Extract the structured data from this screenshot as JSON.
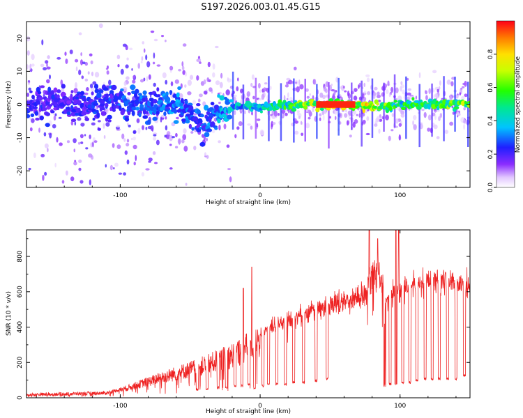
{
  "title": "S197.2026.003.01.45.G15",
  "chart_data": [
    {
      "type": "heatmap",
      "title": "S197.2026.003.01.45.G15",
      "xlabel": "Height of straight line (km)",
      "ylabel": "Frequency (Hz)",
      "xlim": [
        -167,
        150
      ],
      "ylim": [
        -25,
        25
      ],
      "xticks": [
        -100,
        0,
        100
      ],
      "yticks": [
        -20,
        -10,
        0,
        10,
        20
      ],
      "xtick_labels": [
        "-100",
        "0",
        "100"
      ],
      "ytick_labels": [
        "-20",
        "-10",
        "0",
        "10",
        "20"
      ],
      "colorbar": {
        "label": "Normalized spectral amplitude",
        "range": [
          0,
          1
        ],
        "ticks": [
          0.0,
          0.2,
          0.4,
          0.6,
          0.8
        ],
        "tick_labels": [
          "0.0",
          "0.2",
          "0.4",
          "0.6",
          "0.8"
        ],
        "colormap": "rainbow (violet → blue → cyan → green → yellow → red)"
      },
      "description_ridge": [
        {
          "height_km": -140,
          "freq_hz": 0,
          "amplitude": 0.25
        },
        {
          "height_km": -100,
          "freq_hz": 0,
          "amplitude": 0.3
        },
        {
          "height_km": -60,
          "freq_hz": 0,
          "amplitude": 0.35
        },
        {
          "height_km": -42,
          "freq_hz": -6,
          "amplitude": 0.3
        },
        {
          "height_km": -20,
          "freq_hz": 0,
          "amplitude": 0.45
        },
        {
          "height_km": 0,
          "freq_hz": -1,
          "amplitude": 0.5
        },
        {
          "height_km": 20,
          "freq_hz": 0,
          "amplitude": 0.6
        },
        {
          "height_km": 50,
          "freq_hz": 0,
          "amplitude": 0.95
        },
        {
          "height_km": 70,
          "freq_hz": 0,
          "amplitude": 0.9
        },
        {
          "height_km": 85,
          "freq_hz": -1,
          "amplitude": 0.75
        },
        {
          "height_km": 100,
          "freq_hz": 0,
          "amplitude": 0.55
        },
        {
          "height_km": 130,
          "freq_hz": 0,
          "amplitude": 0.7
        }
      ]
    },
    {
      "type": "line",
      "xlabel": "Height of straight line (km)",
      "ylabel": "SNR (10 * v/v)",
      "xlim": [
        -167,
        150
      ],
      "ylim": [
        0,
        950
      ],
      "xticks": [
        -100,
        0,
        100
      ],
      "yticks": [
        0,
        200,
        400,
        600,
        800
      ],
      "xtick_labels": [
        "-100",
        "0",
        "100"
      ],
      "ytick_labels": [
        "0",
        "200",
        "400",
        "600",
        "800"
      ],
      "color": "#ee2222",
      "envelope": {
        "x": [
          -167,
          -140,
          -110,
          -95,
          -80,
          -60,
          -40,
          -20,
          -5,
          5,
          20,
          40,
          55,
          68,
          75,
          80,
          85,
          90,
          95,
          100,
          105,
          120,
          140,
          150
        ],
        "y": [
          20,
          25,
          30,
          60,
          100,
          150,
          200,
          260,
          330,
          380,
          440,
          500,
          540,
          560,
          590,
          700,
          690,
          560,
          580,
          600,
          640,
          660,
          650,
          630
        ]
      },
      "dropouts": {
        "x": [
          -45,
          -38,
          -30,
          -24,
          -18,
          -13,
          -8,
          -4,
          2,
          6,
          12,
          18,
          24,
          31,
          40,
          48,
          89,
          93,
          97,
          102,
          107,
          112,
          118,
          123,
          128,
          134,
          140,
          146
        ],
        "y": [
          40,
          40,
          50,
          50,
          60,
          60,
          70,
          50,
          60,
          70,
          70,
          70,
          80,
          80,
          90,
          100,
          60,
          70,
          70,
          80,
          80,
          90,
          100,
          100,
          100,
          100,
          100,
          120
        ]
      },
      "spikes": {
        "x": [
          -12,
          -6,
          78,
          84,
          97,
          99
        ],
        "y": [
          620,
          740,
          950,
          900,
          950,
          950
        ]
      }
    }
  ]
}
